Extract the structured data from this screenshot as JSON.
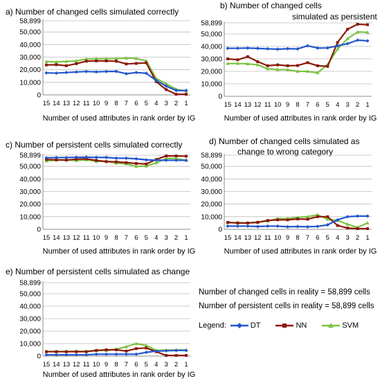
{
  "notes": {
    "changed": "Number of changed cells in reality = 58,899 cells",
    "persistent": "Number of persistent cells in reality = 58,899 cells"
  },
  "legend": {
    "label": "Legend:",
    "items": [
      {
        "name": "DT",
        "color": "#2255cc",
        "marker": "diamond"
      },
      {
        "name": "NN",
        "color": "#8b1a0a",
        "marker": "square"
      },
      {
        "name": "SVM",
        "color": "#7dc242",
        "marker": "triangle"
      }
    ]
  },
  "chart_data": [
    {
      "type": "line",
      "title": "a) Number of changed cells simulated correctly",
      "xlabel": "Number of  used attributes in rank order by IG",
      "categories": [
        "15",
        "14",
        "13",
        "12",
        "11",
        "10",
        "9",
        "8",
        "7",
        "6",
        "5",
        "4",
        "3",
        "2",
        "1"
      ],
      "yticks": [
        "0",
        "10,000",
        "20,000",
        "30,000",
        "40,000",
        "50,000",
        "58,899"
      ],
      "ylim": [
        0,
        58899
      ],
      "grid": true,
      "series": [
        {
          "name": "DT",
          "values": [
            17500,
            17300,
            17800,
            18200,
            18600,
            18300,
            18600,
            18700,
            16800,
            17800,
            17200,
            11500,
            7000,
            3500,
            3500
          ]
        },
        {
          "name": "NN",
          "values": [
            23800,
            24000,
            23200,
            24800,
            26800,
            27000,
            27000,
            26800,
            24600,
            25000,
            25500,
            10500,
            4200,
            500,
            500
          ]
        },
        {
          "name": "SVM",
          "values": [
            26500,
            26200,
            26600,
            27000,
            28500,
            28700,
            28800,
            28800,
            29200,
            29000,
            27000,
            13000,
            8800,
            4500,
            3000
          ]
        }
      ]
    },
    {
      "type": "line",
      "title": "b)  Number of changed cells simulated as persistent",
      "xlabel": "Number of  used attributes in rank order by IG",
      "categories": [
        "15",
        "14",
        "13",
        "12",
        "11",
        "10",
        "9",
        "8",
        "7",
        "6",
        "5",
        "4",
        "3",
        "2",
        "1"
      ],
      "yticks": [
        "0",
        "10,000",
        "20,000",
        "30,000",
        "40,000",
        "50,000",
        "58,899"
      ],
      "ylim": [
        0,
        58899
      ],
      "grid": true,
      "series": [
        {
          "name": "DT",
          "values": [
            38500,
            38500,
            38700,
            38400,
            38100,
            37800,
            38200,
            38000,
            40500,
            38700,
            38800,
            40500,
            42200,
            45000,
            44500
          ]
        },
        {
          "name": "NN",
          "values": [
            30000,
            29300,
            31800,
            27800,
            24500,
            25200,
            24500,
            24700,
            27000,
            24500,
            24000,
            43200,
            53800,
            57800,
            57400
          ]
        },
        {
          "name": "SVM",
          "values": [
            26300,
            26300,
            26000,
            25300,
            22000,
            21400,
            21300,
            20000,
            20000,
            18800,
            25500,
            38000,
            46200,
            51600,
            51300
          ]
        }
      ]
    },
    {
      "type": "line",
      "title": "c)  Number of persistent cells simulated correctly",
      "xlabel": "Number of  used attributes in rank order by IG",
      "categories": [
        "15",
        "14",
        "13",
        "12",
        "11",
        "10",
        "9",
        "8",
        "7",
        "6",
        "5",
        "4",
        "3",
        "2",
        "1"
      ],
      "yticks": [
        "0",
        "10,000",
        "20,000",
        "30,000",
        "40,000",
        "50,000",
        "58,899"
      ],
      "ylim": [
        0,
        58899
      ],
      "grid": true,
      "series": [
        {
          "name": "DT",
          "values": [
            56800,
            57000,
            57000,
            57200,
            57300,
            57100,
            57100,
            56500,
            56500,
            56000,
            55200,
            54900,
            54800,
            54800,
            54800
          ]
        },
        {
          "name": "NN",
          "values": [
            55500,
            55200,
            55000,
            55700,
            56000,
            54700,
            53800,
            53600,
            53000,
            52300,
            51900,
            55500,
            58300,
            58300,
            58100
          ]
        },
        {
          "name": "SVM",
          "values": [
            54300,
            55000,
            55200,
            54600,
            55200,
            54000,
            54000,
            52600,
            52000,
            50000,
            50200,
            52800,
            56300,
            56200,
            54800
          ]
        }
      ]
    },
    {
      "type": "line",
      "title": "d)  Number of changed cells simulated as change to wrong category",
      "xlabel": "Number of  used attributes in rank order by IG",
      "categories": [
        "15",
        "14",
        "13",
        "12",
        "11",
        "10",
        "9",
        "8",
        "7",
        "6",
        "5",
        "4",
        "3",
        "2",
        "1"
      ],
      "yticks": [
        "0",
        "10,000",
        "20,000",
        "30,000",
        "40,000",
        "50,000",
        "58,899"
      ],
      "ylim": [
        0,
        58899
      ],
      "grid": true,
      "series": [
        {
          "name": "DT",
          "values": [
            2500,
            2500,
            2500,
            2200,
            2500,
            2500,
            2000,
            2200,
            2000,
            2300,
            3500,
            7500,
            10000,
            10500,
            10500
          ]
        },
        {
          "name": "NN",
          "values": [
            5500,
            5000,
            5000,
            5500,
            7000,
            7500,
            7500,
            8200,
            8000,
            10000,
            10000,
            3000,
            1000,
            500,
            500
          ]
        },
        {
          "name": "SVM",
          "values": [
            5200,
            5300,
            5100,
            5800,
            6500,
            8500,
            8500,
            9500,
            10000,
            11500,
            8000,
            7000,
            4000,
            1500,
            5000
          ]
        }
      ]
    },
    {
      "type": "line",
      "title": "e)  Number of persistent cells simulated as change",
      "xlabel": "Number of  used attributes in rank order by IG",
      "categories": [
        "15",
        "14",
        "13",
        "12",
        "11",
        "10",
        "9",
        "8",
        "7",
        "6",
        "5",
        "4",
        "3",
        "2",
        "1"
      ],
      "yticks": [
        "0",
        "10,000",
        "20,000",
        "30,000",
        "40,000",
        "50,000",
        "58,899"
      ],
      "ylim": [
        0,
        58899
      ],
      "grid": true,
      "series": [
        {
          "name": "DT",
          "values": [
            1000,
            1000,
            1000,
            1000,
            1000,
            1500,
            1500,
            1500,
            1500,
            1500,
            3000,
            4000,
            4200,
            4500,
            4500
          ]
        },
        {
          "name": "NN",
          "values": [
            3500,
            3500,
            3500,
            3500,
            3500,
            4500,
            5000,
            5000,
            4000,
            6000,
            6500,
            3500,
            500,
            500,
            500
          ]
        },
        {
          "name": "SVM",
          "values": [
            3700,
            3700,
            3700,
            3900,
            3800,
            4500,
            4500,
            5500,
            7500,
            10000,
            8500,
            4500,
            4800,
            4800,
            4800
          ]
        }
      ]
    }
  ]
}
